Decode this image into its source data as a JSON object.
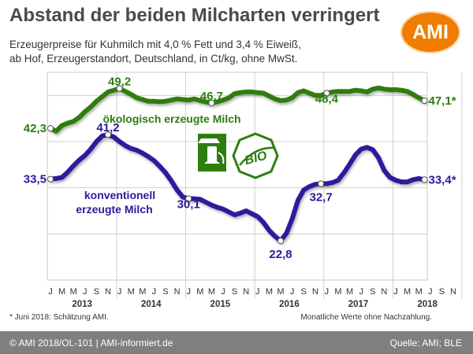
{
  "header": {
    "title": "Abstand der beiden Milcharten verringert",
    "subtitle_line1": "Erzeugerpreise für Kuhmilch mit 4,0 % Fett und 3,4 % Eiweiß,",
    "subtitle_line2": "ab Hof, Erzeugerstandort, Deutschland, in Ct/kg, ohne MwSt.",
    "logo_text": "AMI"
  },
  "footnotes": {
    "left": "* Juni 2018: Schätzung AMI.",
    "right": "Monatliche Werte ohne Nachzahlung."
  },
  "footer": {
    "left": "© AMI 2018/OL-101 | AMI-informiert.de",
    "right": "Quelle: AMI; BLE"
  },
  "icons": [
    "milk-can-icon",
    "bio-seal-icon"
  ],
  "colors": {
    "organic": "#2e7d10",
    "conventional": "#2a1b9c",
    "accent": "#f07d00"
  },
  "chart_data": {
    "type": "line",
    "x": [
      "2013-01",
      "2013-02",
      "2013-03",
      "2013-04",
      "2013-05",
      "2013-06",
      "2013-07",
      "2013-08",
      "2013-09",
      "2013-10",
      "2013-11",
      "2013-12",
      "2014-01",
      "2014-02",
      "2014-03",
      "2014-04",
      "2014-05",
      "2014-06",
      "2014-07",
      "2014-08",
      "2014-09",
      "2014-10",
      "2014-11",
      "2014-12",
      "2015-01",
      "2015-02",
      "2015-03",
      "2015-04",
      "2015-05",
      "2015-06",
      "2015-07",
      "2015-08",
      "2015-09",
      "2015-10",
      "2015-11",
      "2015-12",
      "2016-01",
      "2016-02",
      "2016-03",
      "2016-04",
      "2016-05",
      "2016-06",
      "2016-07",
      "2016-08",
      "2016-09",
      "2016-10",
      "2016-11",
      "2016-12",
      "2017-01",
      "2017-02",
      "2017-03",
      "2017-04",
      "2017-05",
      "2017-06",
      "2017-07",
      "2017-08",
      "2017-09",
      "2017-10",
      "2017-11",
      "2017-12",
      "2018-01",
      "2018-02",
      "2018-03",
      "2018-04",
      "2018-05",
      "2018-06"
    ],
    "month_ticks": [
      "J",
      "M",
      "M",
      "J",
      "S",
      "N",
      "J",
      "M",
      "M",
      "J",
      "S",
      "N",
      "J",
      "M",
      "M",
      "J",
      "S",
      "N",
      "J",
      "M",
      "M",
      "J",
      "S",
      "N",
      "J",
      "M",
      "M",
      "J",
      "S",
      "N",
      "J",
      "M",
      "M",
      "J",
      "S",
      "N"
    ],
    "year_labels": [
      "2013",
      "2014",
      "2015",
      "2016",
      "2017",
      "2018"
    ],
    "ylim": [
      16,
      52
    ],
    "grid": true,
    "series": [
      {
        "name": "ökologisch erzeugte Milch",
        "values": [
          42.3,
          41.8,
          42.8,
          43.2,
          43.5,
          44.2,
          45.2,
          46.0,
          47.0,
          47.8,
          48.6,
          48.9,
          49.2,
          48.7,
          48.2,
          47.6,
          47.3,
          47.0,
          47.0,
          46.9,
          47.0,
          47.2,
          47.4,
          47.3,
          47.2,
          47.4,
          47.1,
          46.9,
          46.7,
          46.9,
          47.2,
          47.6,
          48.3,
          48.5,
          48.6,
          48.6,
          48.5,
          48.4,
          47.9,
          47.4,
          47.1,
          47.2,
          47.6,
          48.5,
          48.8,
          48.4,
          48.0,
          48.0,
          48.4,
          48.6,
          48.7,
          48.7,
          48.7,
          48.9,
          48.8,
          48.6,
          49.1,
          49.3,
          49.1,
          49.0,
          49.0,
          48.9,
          48.7,
          48.2,
          47.6,
          47.1
        ],
        "labels": [
          {
            "at": 0,
            "text": "42,3"
          },
          {
            "at": 12,
            "text": "49,2"
          },
          {
            "at": 28,
            "text": "46,7"
          },
          {
            "at": 48,
            "text": "48,4"
          },
          {
            "at": 65,
            "text": "47,1*"
          }
        ]
      },
      {
        "name": "konventionell erzeugte Milch",
        "values": [
          33.5,
          33.6,
          33.8,
          34.7,
          35.8,
          36.8,
          37.6,
          38.7,
          40.0,
          41.0,
          41.2,
          40.8,
          40.0,
          39.3,
          38.8,
          38.5,
          38.0,
          37.4,
          36.7,
          35.7,
          34.6,
          33.2,
          31.6,
          30.4,
          30.1,
          30.1,
          30.0,
          29.5,
          29.0,
          28.6,
          28.3,
          27.8,
          27.3,
          27.6,
          28.0,
          27.5,
          27.0,
          26.0,
          24.6,
          23.6,
          22.8,
          24.1,
          26.6,
          29.8,
          31.6,
          32.2,
          32.6,
          32.7,
          32.7,
          32.9,
          33.3,
          34.6,
          36.1,
          37.7,
          38.7,
          39.0,
          38.6,
          37.2,
          35.0,
          33.8,
          33.3,
          33.0,
          33.0,
          33.4,
          33.6,
          33.4
        ],
        "labels": [
          {
            "at": 0,
            "text": "33,5"
          },
          {
            "at": 10,
            "text": "41,2"
          },
          {
            "at": 24,
            "text": "30,1"
          },
          {
            "at": 40,
            "text": "22,8"
          },
          {
            "at": 47,
            "text": "32,7"
          },
          {
            "at": 65,
            "text": "33,4*"
          }
        ]
      }
    ]
  }
}
